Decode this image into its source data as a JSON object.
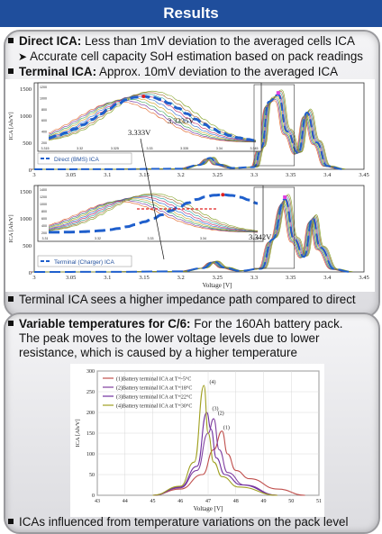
{
  "title": "Results",
  "items": {
    "direct_head": "Direct ICA:",
    "direct_text": "Less than 1mV deviation to the averaged cells ICA",
    "sub_text": "Accurate cell capacity SoH estimation based on pack readings",
    "terminal_head": "Terminal ICA:",
    "terminal_text": "Approx. 10mV deviation to the averaged ICA",
    "impedance_text": "Terminal ICA sees a higher impedance path compared to direct",
    "temp_head": "Variable temperatures for C/6:",
    "temp_text_1": "For the 160Ah battery pack.",
    "temp_text_2": "The peak moves to the lower voltage levels due to lower",
    "temp_text_3": "resistance, which is caused by a higher temperature",
    "influence_text": "ICAs influenced from temperature variations on the pack level"
  },
  "chart_data": [
    {
      "type": "line",
      "xlabel": "",
      "ylabel": "ICA [Ah/V]",
      "x_ticks": [
        "3",
        "3.05",
        "3.1",
        "3.15",
        "3.2",
        "3.25",
        "3.3",
        "3.35",
        "3.4",
        "3.45"
      ],
      "y_ticks": [
        "0",
        "500",
        "1000",
        "1500"
      ],
      "xlim": [
        3.0,
        3.45
      ],
      "ylim": [
        0,
        1600
      ],
      "legend": {
        "label": "Direct (BMS) ICA",
        "position": "bottom-left"
      },
      "annotations": [
        "3.3335V",
        "3.333V"
      ],
      "inset_x_ticks": [
        "3.315",
        "3.32",
        "3.325",
        "3.33",
        "3.335",
        "3.34",
        "3.345"
      ],
      "inset_y_ticks": [
        "200",
        "400",
        "600",
        "800",
        "1000",
        "1200"
      ],
      "series": [
        {
          "name": "Direct (BMS) ICA",
          "x": [
            3.0,
            3.1,
            3.2,
            3.225,
            3.24,
            3.25,
            3.27,
            3.3,
            3.31,
            3.32,
            3.333,
            3.345,
            3.36,
            3.372,
            3.385,
            3.4,
            3.42
          ],
          "y": [
            0,
            2,
            10,
            80,
            210,
            90,
            25,
            40,
            400,
            1250,
            1380,
            700,
            300,
            1050,
            500,
            60,
            5
          ]
        }
      ]
    },
    {
      "type": "line",
      "xlabel": "Voltage [V]",
      "ylabel": "ICA [Ah/V]",
      "x_ticks": [
        "3",
        "3.05",
        "3.1",
        "3.15",
        "3.2",
        "3.25",
        "3.3",
        "3.35",
        "3.4",
        "3.45"
      ],
      "y_ticks": [
        "0",
        "500",
        "1000",
        "1500"
      ],
      "xlim": [
        3.0,
        3.45
      ],
      "ylim": [
        0,
        1600
      ],
      "legend": {
        "label": "Terminal (Charger) ICA",
        "position": "bottom-left"
      },
      "annotations": [
        "3.342V"
      ],
      "inset_x_ticks": [
        "3.31",
        "3.32",
        "3.33",
        "3.34",
        "3.35"
      ],
      "inset_y_ticks": [
        "200",
        "400",
        "600",
        "800",
        "1000",
        "1200",
        "1400"
      ],
      "series": [
        {
          "name": "Terminal (Charger) ICA",
          "x": [
            3.0,
            3.1,
            3.2,
            3.23,
            3.245,
            3.26,
            3.28,
            3.31,
            3.325,
            3.342,
            3.355,
            3.368,
            3.38,
            3.39,
            3.41,
            3.43
          ],
          "y": [
            0,
            2,
            10,
            70,
            190,
            80,
            20,
            60,
            600,
            1350,
            600,
            280,
            1000,
            450,
            50,
            5
          ]
        }
      ]
    },
    {
      "type": "line",
      "xlabel": "Voltage [V]",
      "ylabel": "ICA [Ah/V]",
      "x_ticks": [
        "43",
        "44",
        "45",
        "46",
        "47",
        "48",
        "49",
        "50",
        "51"
      ],
      "y_ticks": [
        "0",
        "50",
        "100",
        "150",
        "200",
        "250",
        "300"
      ],
      "xlim": [
        43,
        51
      ],
      "ylim": [
        0,
        300
      ],
      "legend_position": "top-left",
      "peak_labels": [
        "(4)",
        "(3)",
        "(2)",
        "(1)"
      ],
      "series": [
        {
          "name": "(1)Battery terminal ICA at T=-5°C",
          "x": [
            45.0,
            46.0,
            46.8,
            47.2,
            47.5,
            47.7,
            48.0,
            48.5,
            49.5,
            50.5
          ],
          "y": [
            0,
            15,
            50,
            110,
            155,
            100,
            60,
            40,
            15,
            0
          ]
        },
        {
          "name": "(2)Battery terminal ICA at T=18°C",
          "x": [
            45.0,
            46.0,
            46.6,
            47.0,
            47.2,
            47.4,
            47.7,
            48.3,
            49.5
          ],
          "y": [
            0,
            18,
            60,
            150,
            185,
            110,
            55,
            25,
            0
          ]
        },
        {
          "name": "(3)Battery terminal ICA at T=22°C",
          "x": [
            45.0,
            46.0,
            46.6,
            46.95,
            47.1,
            47.3,
            47.6,
            48.2,
            49.5
          ],
          "y": [
            0,
            20,
            70,
            200,
            160,
            90,
            50,
            25,
            0
          ]
        },
        {
          "name": "(4)Battery terminal ICA at T=30°C",
          "x": [
            45.0,
            46.0,
            46.5,
            46.85,
            47.0,
            47.2,
            47.5,
            48.1,
            49.5
          ],
          "y": [
            0,
            22,
            80,
            265,
            150,
            80,
            45,
            20,
            0
          ]
        }
      ]
    }
  ],
  "colors": {
    "title_bar": "#1f4e9c",
    "direct_series": "#1f5fcc",
    "terminal_series": "#1f5fcc",
    "red_marker": "#e02020"
  }
}
